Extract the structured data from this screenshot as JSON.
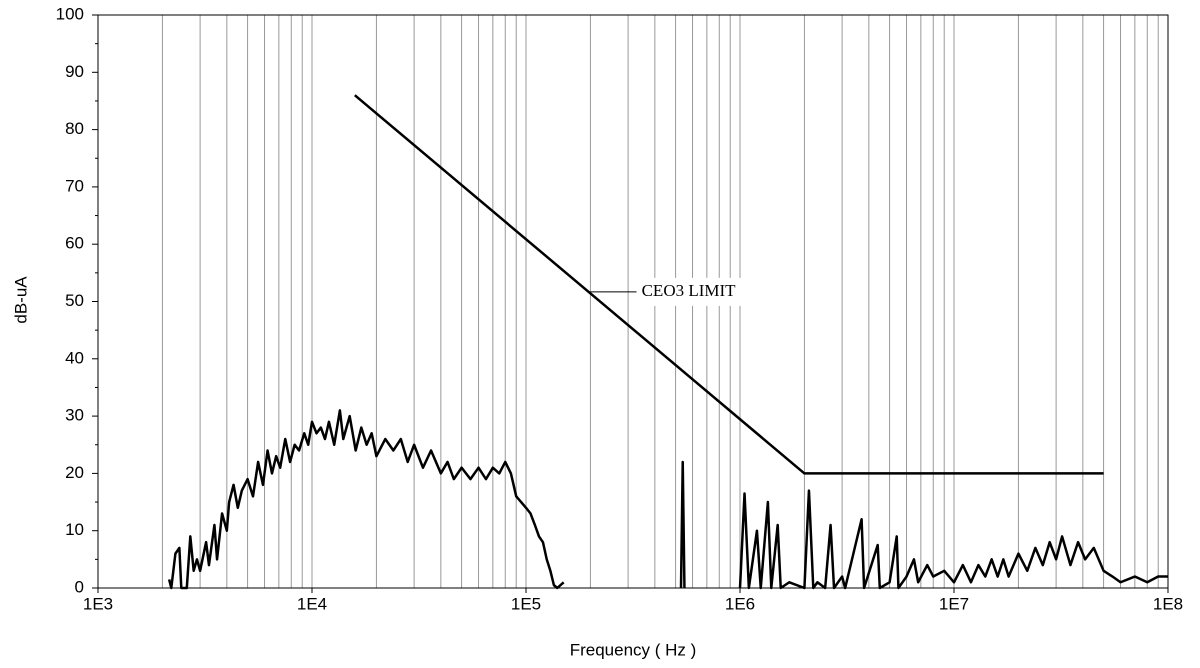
{
  "chart_data": {
    "type": "line",
    "x_label": "Frequency ( Hz )",
    "y_label": "dB-uA",
    "xscale": "log",
    "grid": true,
    "xlim": [
      1000,
      100000000
    ],
    "ylim": [
      0,
      100
    ],
    "xticks": [
      {
        "value": 1000,
        "label": "1E3"
      },
      {
        "value": 10000,
        "label": "1E4"
      },
      {
        "value": 100000,
        "label": "1E5"
      },
      {
        "value": 1000000,
        "label": "1E6"
      },
      {
        "value": 10000000,
        "label": "1E7"
      },
      {
        "value": 100000000,
        "label": "1E8"
      }
    ],
    "yticks": [
      0,
      10,
      20,
      30,
      40,
      50,
      60,
      70,
      80,
      90,
      100
    ],
    "series": [
      {
        "color": "#000000",
        "x": [
          2150,
          2200,
          2300,
          2400,
          2450,
          2600,
          2700,
          2800,
          2900,
          3000,
          3200,
          3300,
          3500,
          3600,
          3800,
          4000,
          4100,
          4300,
          4500,
          4700,
          5000,
          5300,
          5600,
          5900,
          6200,
          6500,
          6800,
          7100,
          7500,
          7900,
          8300,
          8700,
          9200,
          9600,
          10000,
          10500,
          11000,
          11500,
          12000,
          12700,
          13500,
          14000,
          15000,
          16000,
          17000,
          18000,
          19000,
          20000,
          22000,
          24000,
          26000,
          28000,
          30000,
          33000,
          36000,
          40000,
          43000,
          46000,
          50000,
          55000,
          60000,
          65000,
          70000,
          75000,
          80000,
          85000,
          90000,
          100000,
          105000,
          110000,
          115000,
          120000,
          125000,
          130000,
          135000,
          140000,
          150000,
          300000,
          530000,
          540000,
          550000,
          600000,
          800000,
          900000,
          1000000,
          1050000,
          1100000,
          1200000,
          1250000,
          1350000,
          1400000,
          1500000,
          1550000,
          1700000,
          2000000,
          2100000,
          2200000,
          2300000,
          2500000,
          2650000,
          2750000,
          3000000,
          3100000,
          3700000,
          3800000,
          4400000,
          4500000,
          5000000,
          5400000,
          5500000,
          6000000,
          6500000,
          6800000,
          7500000,
          8000000,
          9000000,
          10000000,
          11000000,
          12000000,
          13000000,
          14000000,
          15000000,
          16000000,
          17000000,
          18000000,
          20000000,
          22000000,
          24000000,
          26000000,
          28000000,
          30000000,
          32000000,
          35000000,
          38000000,
          41000000,
          45000000,
          50000000,
          55000000,
          60000000,
          70000000,
          80000000,
          90000000,
          100000000
        ],
        "values": [
          1.5,
          0,
          6,
          7,
          0,
          0,
          9,
          3,
          5,
          3,
          8,
          4,
          11,
          5,
          13,
          10,
          15,
          18,
          14,
          17,
          19,
          16,
          22,
          18,
          24,
          20,
          23,
          21,
          26,
          22,
          25,
          24,
          27,
          25,
          29,
          27,
          28,
          26,
          29,
          25,
          31,
          26,
          30,
          24,
          28,
          25,
          27,
          23,
          26,
          24,
          26,
          22,
          25,
          21,
          24,
          20,
          22,
          19,
          21,
          19,
          21,
          19,
          21,
          20,
          22,
          20,
          16,
          14,
          13,
          11,
          9,
          8,
          5,
          3,
          0.5,
          0,
          1,
          null,
          0,
          22,
          0,
          null,
          0.5,
          null,
          0,
          16.5,
          0,
          10,
          0,
          15,
          0,
          11,
          0,
          1,
          0,
          17,
          0,
          1,
          0,
          11,
          0,
          2,
          0,
          12,
          0,
          7.5,
          0,
          1,
          9,
          0,
          2,
          5,
          1,
          4,
          2,
          3,
          1,
          4,
          1,
          4,
          2,
          5,
          2,
          5,
          2,
          6,
          3,
          7,
          4,
          8,
          5,
          9,
          4,
          8,
          5,
          7,
          3,
          2,
          1,
          2,
          1,
          2,
          2
        ]
      },
      {
        "name": "CEO3 LIMIT",
        "color": "#000000",
        "x": [
          15850,
          2000000,
          50000000
        ],
        "values": [
          86,
          20,
          20
        ]
      }
    ]
  }
}
